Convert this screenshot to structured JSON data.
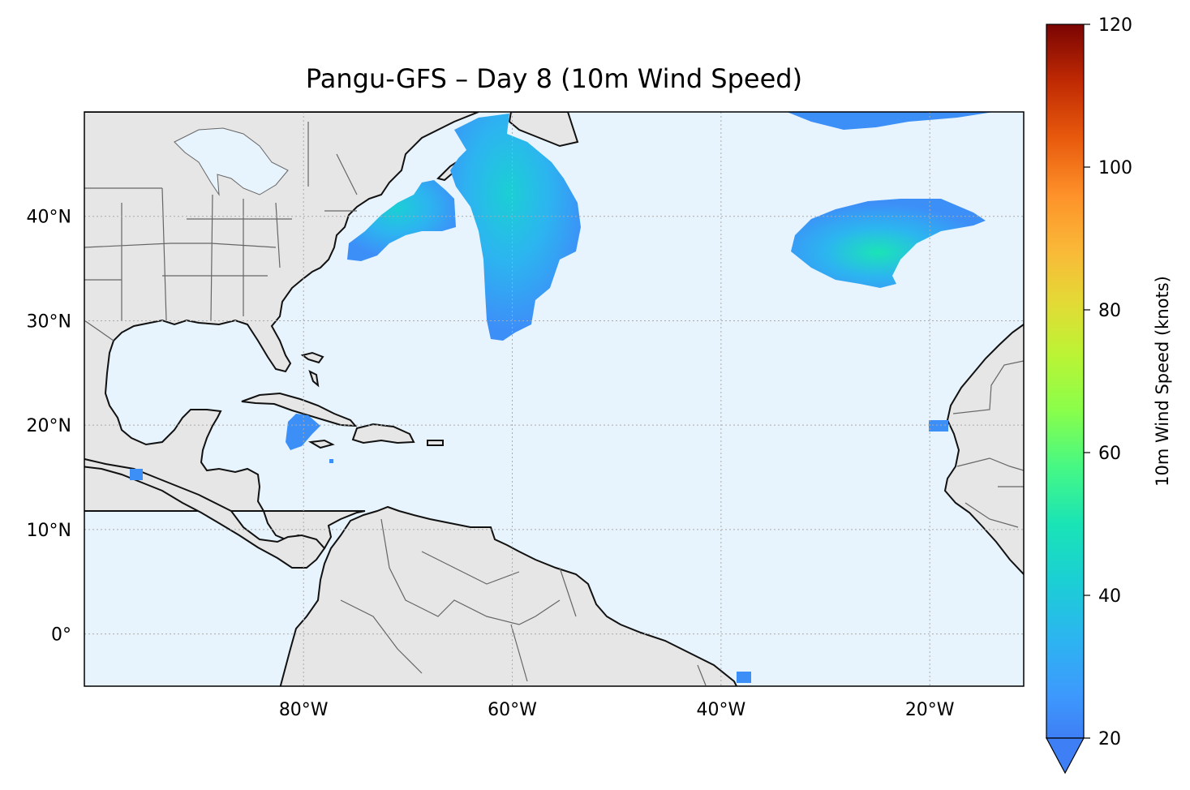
{
  "title": "Pangu-GFS – Day 8 (10m Wind Speed)",
  "map": {
    "extent": {
      "lon": [
        -101,
        -11
      ],
      "lat": [
        -5,
        50
      ]
    },
    "ocean_color": "#e8f4fd",
    "land_color": "#e6e6e6",
    "coastline_color": "#111111",
    "border_color": "#666666",
    "lon_ticks": [
      {
        "value": -80,
        "label": "80°W"
      },
      {
        "value": -60,
        "label": "60°W"
      },
      {
        "value": -40,
        "label": "40°W"
      },
      {
        "value": -20,
        "label": "20°W"
      }
    ],
    "lat_ticks": [
      {
        "value": 40,
        "label": "40°N"
      },
      {
        "value": 30,
        "label": "30°N"
      },
      {
        "value": 20,
        "label": "20°N"
      },
      {
        "value": 10,
        "label": "10°N"
      },
      {
        "value": 0,
        "label": "0°"
      }
    ],
    "gridlines": true
  },
  "colorbar": {
    "label": "10m Wind Speed (knots)",
    "min": 20,
    "max": 120,
    "extend": "min",
    "ticks": [
      {
        "value": 20,
        "label": "20"
      },
      {
        "value": 40,
        "label": "40"
      },
      {
        "value": 60,
        "label": "60"
      },
      {
        "value": 80,
        "label": "80"
      },
      {
        "value": 100,
        "label": "100"
      },
      {
        "value": 120,
        "label": "120"
      }
    ],
    "colormap": "turbo"
  }
}
